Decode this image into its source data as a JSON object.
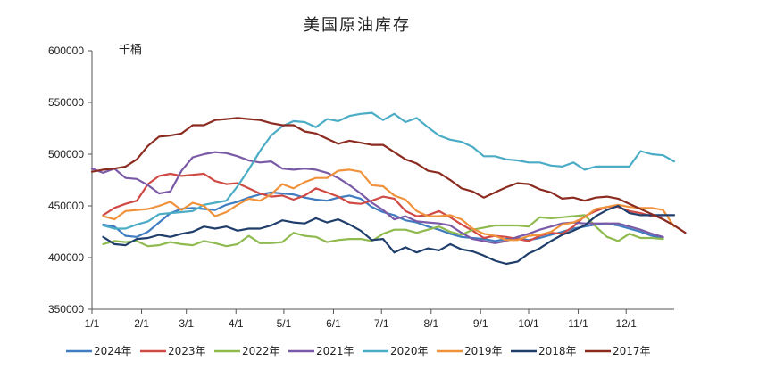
{
  "chart_data": {
    "type": "line",
    "title": "美国原油库存",
    "unit": "千桶",
    "ylim": [
      350000,
      600000
    ],
    "y_ticks": [
      "350000",
      "400000",
      "450000",
      "500000",
      "550000",
      "600000"
    ],
    "y_tick_values": [
      350000,
      400000,
      450000,
      500000,
      550000,
      600000
    ],
    "x_ticks": [
      "1/1",
      "2/1",
      "3/1",
      "4/1",
      "5/1",
      "6/1",
      "7/1",
      "8/1",
      "9/1",
      "10/1",
      "11/1",
      "12/1"
    ],
    "x_tick_weeks": [
      0,
      4.43,
      8.43,
      12.86,
      17.14,
      21.57,
      25.86,
      30.29,
      34.71,
      39.0,
      43.43,
      47.71
    ],
    "x_range_weeks": [
      0,
      52
    ],
    "grid": false,
    "legend_position": "bottom",
    "series": [
      {
        "name": "2024年",
        "color": "#3f7cc0",
        "week_start": 1,
        "values": [
          432000,
          430000,
          421000,
          420000,
          425000,
          434000,
          443000,
          447000,
          448000,
          447000,
          446000,
          451000,
          454000,
          458000,
          461000,
          463000,
          462000,
          461000,
          458000,
          456000,
          455000,
          458000,
          460000,
          457000,
          449000,
          444000,
          441000,
          436000,
          434000,
          430000,
          427000,
          423000,
          420000,
          419000,
          418000,
          416000,
          418000,
          419000,
          417000,
          419000,
          422000,
          425000,
          428000,
          430000,
          432000,
          433000,
          431000,
          428000,
          425000,
          421000,
          419000
        ]
      },
      {
        "name": "2023年",
        "color": "#d04a45",
        "week_start": 1,
        "values": [
          441000,
          448000,
          452000,
          455000,
          471000,
          479000,
          481000,
          479000,
          480000,
          481000,
          474000,
          471000,
          472000,
          467000,
          462000,
          459000,
          460000,
          456000,
          460000,
          467000,
          463000,
          459000,
          453000,
          452000,
          455000,
          459000,
          457000,
          445000,
          440000,
          441000,
          445000,
          439000,
          432000,
          426000,
          419000,
          421000,
          420000,
          418000,
          416000,
          421000,
          424000,
          423000,
          430000,
          440000,
          445000,
          449000,
          449000,
          445000,
          443000,
          440000,
          441000
        ]
      },
      {
        "name": "2022年",
        "color": "#8fba4f",
        "week_start": 1,
        "values": [
          413000,
          416000,
          415000,
          416000,
          411000,
          412000,
          415000,
          413000,
          412000,
          416000,
          414000,
          411000,
          413000,
          421000,
          414000,
          414000,
          415000,
          424000,
          421000,
          420000,
          415000,
          417000,
          418000,
          418000,
          416000,
          423000,
          427000,
          427000,
          424000,
          427000,
          430000,
          425000,
          422000,
          427000,
          429000,
          431000,
          431000,
          431000,
          430000,
          439000,
          438000,
          439000,
          440000,
          441000,
          430000,
          420000,
          416000,
          423000,
          419000,
          419000,
          418000
        ]
      },
      {
        "name": "2021年",
        "color": "#7a5aa6",
        "week_start": 0,
        "values": [
          486000,
          482000,
          486000,
          477000,
          476000,
          470000,
          462000,
          464000,
          484000,
          497000,
          500000,
          502000,
          501000,
          498000,
          494000,
          492000,
          493000,
          486000,
          485000,
          486000,
          485000,
          482000,
          477000,
          470000,
          462000,
          453000,
          446000,
          437000,
          440000,
          435000,
          434000,
          433000,
          431000,
          424000,
          418000,
          416000,
          414000,
          416000,
          420000,
          423000,
          427000,
          430000,
          433000,
          434000,
          433000,
          433000,
          433000,
          433000,
          430000,
          427000,
          423000,
          420000
        ]
      },
      {
        "name": "2020年",
        "color": "#4bacc6",
        "week_start": 1,
        "values": [
          431000,
          428000,
          428000,
          432000,
          435000,
          442000,
          443000,
          444000,
          445000,
          451000,
          453000,
          455000,
          469000,
          485000,
          503000,
          518000,
          527000,
          532000,
          531000,
          526000,
          534000,
          532000,
          537000,
          539000,
          540000,
          533000,
          539000,
          531000,
          535000,
          526000,
          518000,
          514000,
          512000,
          507000,
          498000,
          498000,
          495000,
          494000,
          492000,
          492000,
          489000,
          488000,
          492000,
          485000,
          488000,
          488000,
          488000,
          488000,
          503000,
          500000,
          499000,
          493000
        ]
      },
      {
        "name": "2019年",
        "color": "#f0923c",
        "week_start": 1,
        "values": [
          440000,
          437000,
          445000,
          446000,
          447000,
          450000,
          454000,
          446000,
          453000,
          450000,
          440000,
          444000,
          451000,
          457000,
          455000,
          461000,
          471000,
          467000,
          473000,
          477000,
          477000,
          484000,
          485000,
          483000,
          470000,
          469000,
          460000,
          456000,
          445000,
          440000,
          440000,
          441000,
          437000,
          428000,
          423000,
          421000,
          417000,
          417000,
          421000,
          422000,
          425000,
          432000,
          434000,
          439000,
          447000,
          449000,
          451000,
          449000,
          448000,
          448000,
          446000,
          430000
        ]
      },
      {
        "name": "2018年",
        "color": "#1f3e6b",
        "week_start": 1,
        "values": [
          420000,
          413000,
          412000,
          418000,
          419000,
          422000,
          420000,
          423000,
          425000,
          430000,
          428000,
          430000,
          426000,
          428000,
          428000,
          431000,
          436000,
          434000,
          433000,
          438000,
          434000,
          437000,
          432000,
          426000,
          417000,
          418000,
          405000,
          410000,
          405000,
          409000,
          407000,
          413000,
          408000,
          406000,
          402000,
          397000,
          394000,
          396000,
          404000,
          409000,
          416000,
          422000,
          426000,
          431000,
          440000,
          446000,
          450000,
          443000,
          441000,
          441000,
          441000,
          441000
        ]
      },
      {
        "name": "2017年",
        "color": "#8b2b20",
        "week_start": 0,
        "values": [
          483000,
          485000,
          486000,
          488000,
          495000,
          508000,
          517000,
          518000,
          520000,
          528000,
          528000,
          533000,
          534000,
          535000,
          534000,
          533000,
          530000,
          528000,
          528000,
          522000,
          520000,
          515000,
          510000,
          513000,
          511000,
          509000,
          509000,
          502000,
          495000,
          491000,
          484000,
          482000,
          475000,
          467000,
          464000,
          458000,
          463000,
          468000,
          472000,
          471000,
          466000,
          463000,
          457000,
          458000,
          455000,
          458000,
          459000,
          457000,
          452000,
          447000,
          442000,
          437000,
          431000,
          424000
        ]
      }
    ]
  }
}
